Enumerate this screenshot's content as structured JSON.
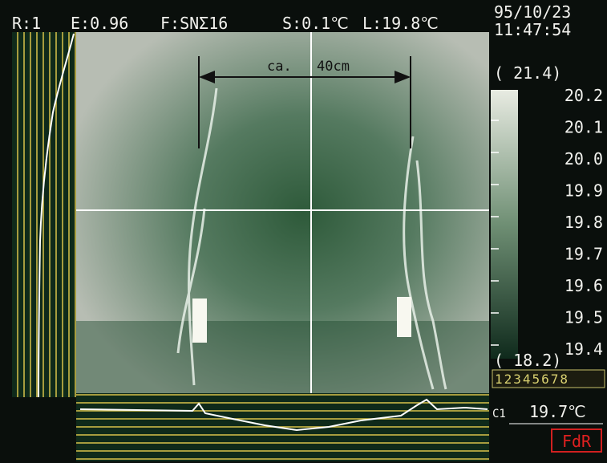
{
  "header": {
    "range": "R:1",
    "emissivity": "E:0.96",
    "filter": "F:SNΣ16",
    "sensitivity": "S:0.1℃",
    "level": "L:19.8℃",
    "date": "95/10/23",
    "time": "11:47:54"
  },
  "annotation": {
    "prefix": "ca.",
    "distance": "40cm"
  },
  "scale": {
    "max": "( 21.4)",
    "labels": [
      "20.2",
      "20.1",
      "20.0",
      "19.9",
      "19.8",
      "19.7",
      "19.6",
      "19.5",
      "19.4"
    ],
    "min": "( 18.2)",
    "palette": "12345678"
  },
  "cursor": {
    "name": "C1",
    "value": "19.7℃"
  },
  "mode": "FdR"
}
